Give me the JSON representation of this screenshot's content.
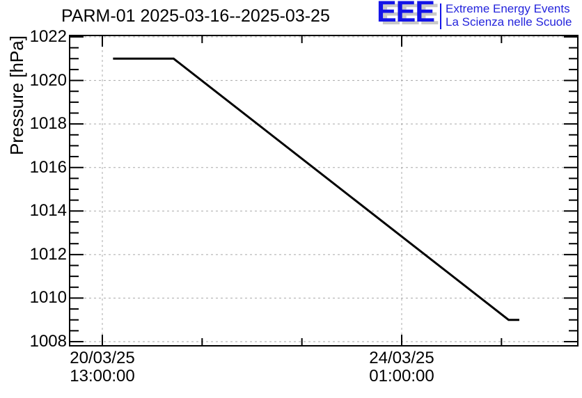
{
  "header": {
    "logo": {
      "acronym": "EEE",
      "line1": "Extreme Energy Events",
      "line2": "La Scienza nelle Scuole",
      "accent_color": "#1414e8",
      "text_color": "#2424dc",
      "shadow_color": "#c9c9c9"
    }
  },
  "chart_data": {
    "type": "line",
    "title": "PARM-01 2025-03-16--2025-03-25",
    "xlabel": "",
    "ylabel": "Pressure [hPa]",
    "x_axis": {
      "kind": "time",
      "major_ticks": [
        {
          "date": "20/03/25",
          "time": "13:00:00",
          "hours_offset": 0
        },
        {
          "date": "24/03/25",
          "time": "01:00:00",
          "hours_offset": 84
        }
      ],
      "minor_tick_hours": [
        28,
        56,
        112
      ],
      "range_hours": [
        -9.2,
        133.4
      ]
    },
    "y_axis": {
      "ticks": [
        1008,
        1010,
        1012,
        1014,
        1016,
        1018,
        1020,
        1022
      ],
      "minor_step": 0.5,
      "range": [
        1007.8,
        1022.06
      ]
    },
    "grid": {
      "shown": true,
      "style": "dashed",
      "color": "#a8a8a8",
      "legend": "none"
    },
    "series": [
      {
        "name": "pressure",
        "color": "#000000",
        "line_width": 3,
        "points": [
          {
            "t": "2025-03-20 16:00",
            "hours": 3,
            "hPa": 1021
          },
          {
            "t": "2025-03-21 09:00",
            "hours": 20,
            "hPa": 1021
          },
          {
            "t": "2025-03-25 07:00",
            "hours": 114,
            "hPa": 1009
          },
          {
            "t": "2025-03-25 10:00",
            "hours": 117,
            "hPa": 1009
          }
        ]
      }
    ]
  }
}
